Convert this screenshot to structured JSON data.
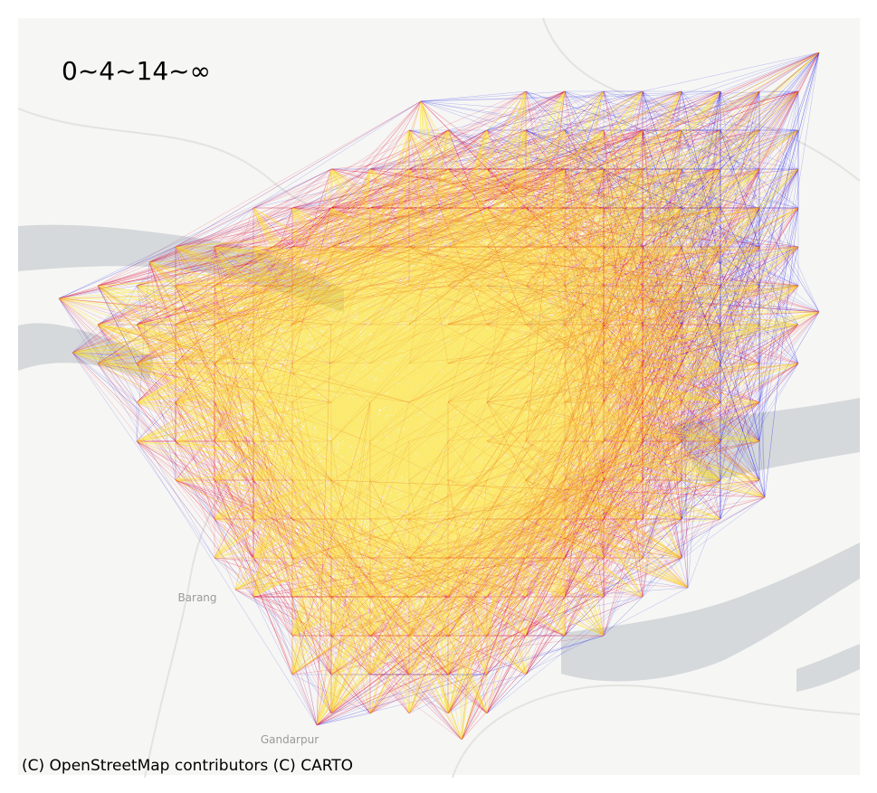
{
  "legend_label": "0~4~14~∞",
  "places": [
    "Barang",
    "Gandarpur"
  ],
  "attribution": "(C) OpenStreetMap contributors (C) CARTO"
}
